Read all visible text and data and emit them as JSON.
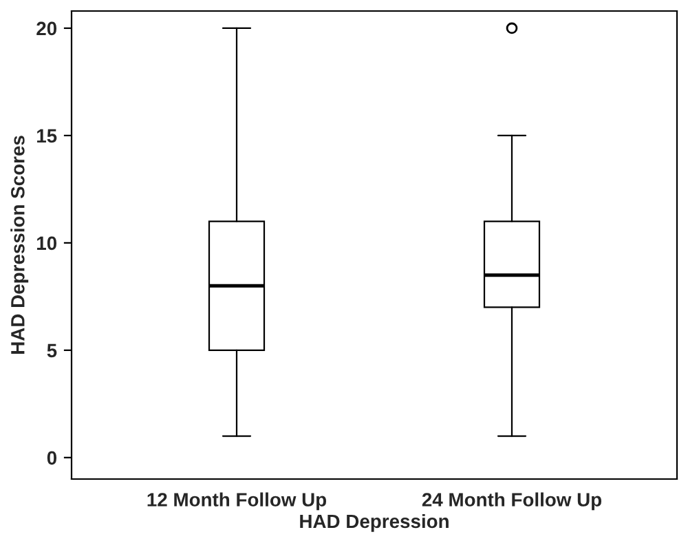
{
  "chart_data": {
    "type": "box",
    "xlabel": "HAD Depression",
    "ylabel": "HAD Depression Scores",
    "categories": [
      "12 Month Follow Up",
      "24 Month Follow Up"
    ],
    "boxes": [
      {
        "low": 1,
        "q1": 5,
        "median": 8,
        "q3": 11,
        "high": 20
      },
      {
        "low": 1,
        "q1": 7,
        "median": 8.5,
        "q3": 11,
        "high": 15,
        "outliers": [
          20
        ]
      }
    ],
    "ylim": [
      -1,
      20.8
    ],
    "yticks": [
      0,
      5,
      10,
      15,
      20
    ],
    "grid": false,
    "legend": false
  }
}
